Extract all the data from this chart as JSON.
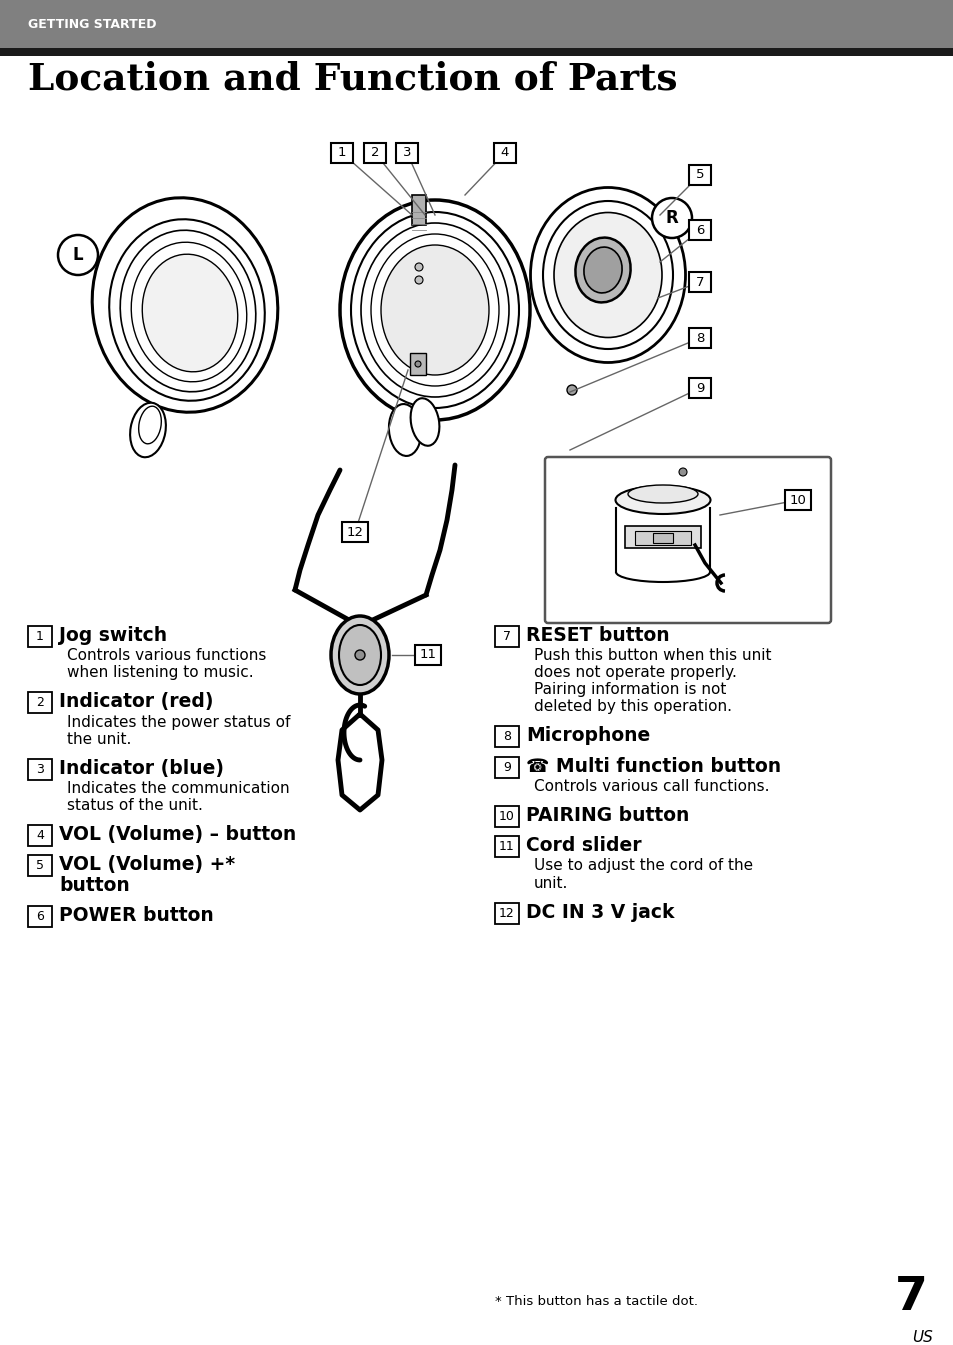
{
  "header_bg": "#808080",
  "header_text": "GETTING STARTED",
  "header_text_color": "#ffffff",
  "black_bar_color": "#1a1a1a",
  "title": "Location and Function of Parts",
  "bg_color": "#ffffff",
  "text_color": "#000000",
  "items_left": [
    {
      "num": "1",
      "bold": "Jog switch",
      "desc": "Controls various functions\nwhen listening to music."
    },
    {
      "num": "2",
      "bold": "Indicator (red)",
      "desc": "Indicates the power status of\nthe unit."
    },
    {
      "num": "3",
      "bold": "Indicator (blue)",
      "desc": "Indicates the communication\nstatus of the unit."
    },
    {
      "num": "4",
      "bold": "VOL (Volume) – button",
      "desc": ""
    },
    {
      "num": "5",
      "bold": "VOL (Volume) +*\nbutton",
      "desc": ""
    },
    {
      "num": "6",
      "bold": "POWER button",
      "desc": ""
    }
  ],
  "items_right": [
    {
      "num": "7",
      "bold": "RESET button",
      "desc": "Push this button when this unit\ndoes not operate properly.\nPairing information is not\ndeleted by this operation."
    },
    {
      "num": "8",
      "bold": "Microphone",
      "desc": ""
    },
    {
      "num": "9",
      "bold": "☎ Multi function button",
      "desc": "Controls various call functions."
    },
    {
      "num": "10",
      "bold": "PAIRING button",
      "desc": ""
    },
    {
      "num": "11",
      "bold": "Cord slider",
      "desc": "Use to adjust the cord of the\nunit."
    },
    {
      "num": "12",
      "bold": "DC IN 3 V jack",
      "desc": ""
    }
  ],
  "footnote": "* This button has a tactile dot.",
  "page_number": "7",
  "page_sub": "US"
}
